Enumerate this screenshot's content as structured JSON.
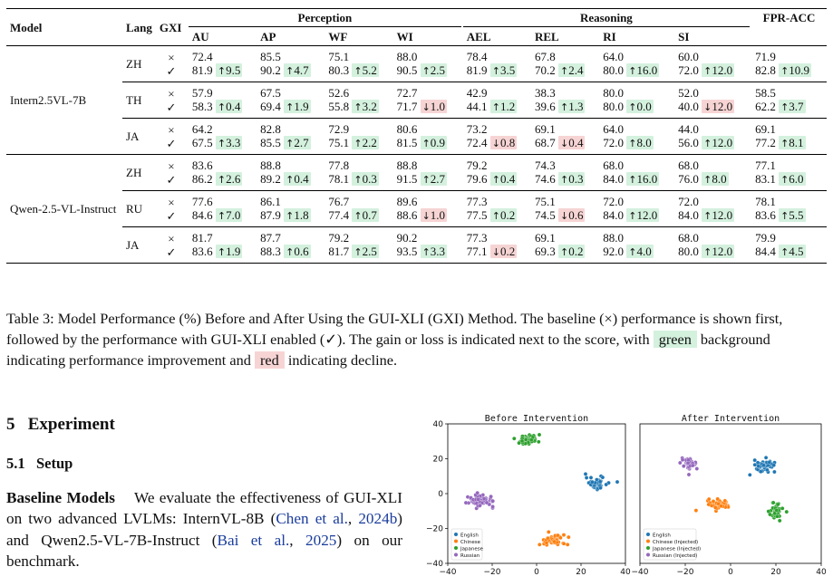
{
  "table": {
    "headers": {
      "model": "Model",
      "lang": "Lang",
      "gxi": "GXI",
      "groups": [
        {
          "label": "Perception",
          "cols": [
            "AU",
            "AP",
            "WF",
            "WI"
          ]
        },
        {
          "label": "Reasoning",
          "cols": [
            "AEL",
            "REL",
            "RI",
            "SI"
          ]
        }
      ],
      "fpr": "FPR-ACC"
    },
    "baseline_mark": "×",
    "gxi_mark": "✓",
    "rows": [
      {
        "model": "Intern2.5VL-7B",
        "lang": "ZH",
        "base": [
          "72.4",
          "85.5",
          "75.1",
          "88.0",
          "78.4",
          "67.8",
          "64.0",
          "60.0",
          "71.9"
        ],
        "gxi": [
          "81.9",
          "90.2",
          "80.3",
          "90.5",
          "81.9",
          "70.2",
          "80.0",
          "72.0",
          "82.8"
        ],
        "delta": [
          "9.5",
          "4.7",
          "5.2",
          "2.5",
          "3.5",
          "2.4",
          "16.0",
          "12.0",
          "10.9"
        ],
        "dir": [
          "up",
          "up",
          "up",
          "up",
          "up",
          "up",
          "up",
          "up",
          "up"
        ]
      },
      {
        "model": "",
        "lang": "TH",
        "base": [
          "57.9",
          "67.5",
          "52.6",
          "72.7",
          "42.9",
          "38.3",
          "80.0",
          "52.0",
          "58.5"
        ],
        "gxi": [
          "58.3",
          "69.4",
          "55.8",
          "71.7",
          "44.1",
          "39.6",
          "80.0",
          "40.0",
          "62.2"
        ],
        "delta": [
          "0.4",
          "1.9",
          "3.2",
          "1.0",
          "1.2",
          "1.3",
          "0.0",
          "12.0",
          "3.7"
        ],
        "dir": [
          "up",
          "up",
          "up",
          "down",
          "up",
          "up",
          "up",
          "down",
          "up"
        ]
      },
      {
        "model": "",
        "lang": "JA",
        "base": [
          "64.2",
          "82.8",
          "72.9",
          "80.6",
          "73.2",
          "69.1",
          "64.0",
          "44.0",
          "69.1"
        ],
        "gxi": [
          "67.5",
          "85.5",
          "75.1",
          "81.5",
          "72.4",
          "68.7",
          "72.0",
          "56.0",
          "77.2"
        ],
        "delta": [
          "3.3",
          "2.7",
          "2.2",
          "0.9",
          "0.8",
          "0.4",
          "8.0",
          "12.0",
          "8.1"
        ],
        "dir": [
          "up",
          "up",
          "up",
          "up",
          "down",
          "down",
          "up",
          "up",
          "up"
        ]
      },
      {
        "model": "Qwen-2.5-VL-Instruct",
        "lang": "ZH",
        "base": [
          "83.6",
          "88.8",
          "77.8",
          "88.8",
          "79.2",
          "74.3",
          "68.0",
          "68.0",
          "77.1"
        ],
        "gxi": [
          "86.2",
          "89.2",
          "78.1",
          "91.5",
          "79.6",
          "74.6",
          "84.0",
          "76.0",
          "83.1"
        ],
        "delta": [
          "2.6",
          "0.4",
          "0.3",
          "2.7",
          "0.4",
          "0.3",
          "16.0",
          "8.0",
          "6.0"
        ],
        "dir": [
          "up",
          "up",
          "up",
          "up",
          "up",
          "up",
          "up",
          "up",
          "up"
        ]
      },
      {
        "model": "",
        "lang": "RU",
        "base": [
          "77.6",
          "86.1",
          "76.7",
          "89.6",
          "77.3",
          "75.1",
          "72.0",
          "72.0",
          "78.1"
        ],
        "gxi": [
          "84.6",
          "87.9",
          "77.4",
          "88.6",
          "77.5",
          "74.5",
          "84.0",
          "84.0",
          "83.6"
        ],
        "delta": [
          "7.0",
          "1.8",
          "0.7",
          "1.0",
          "0.2",
          "0.6",
          "12.0",
          "12.0",
          "5.5"
        ],
        "dir": [
          "up",
          "up",
          "up",
          "down",
          "up",
          "down",
          "up",
          "up",
          "up"
        ]
      },
      {
        "model": "",
        "lang": "JA",
        "base": [
          "81.7",
          "87.7",
          "79.2",
          "90.2",
          "77.3",
          "69.1",
          "88.0",
          "68.0",
          "79.9"
        ],
        "gxi": [
          "83.6",
          "88.3",
          "81.7",
          "93.5",
          "77.1",
          "69.3",
          "92.0",
          "80.0",
          "84.4"
        ],
        "delta": [
          "1.9",
          "0.6",
          "2.5",
          "3.3",
          "0.2",
          "0.2",
          "4.0",
          "12.0",
          "4.5"
        ],
        "dir": [
          "up",
          "up",
          "up",
          "up",
          "down",
          "up",
          "up",
          "up",
          "up"
        ]
      }
    ]
  },
  "caption": {
    "part1": "Table 3: Model Performance (%) Before and After Using the GUI-XLI (GXI) Method. The baseline (×) performance is shown first, followed by the performance with GUI-XLI enabled (✓). The gain or loss is indicated next to the score, with ",
    "green": "green",
    "part2": " background indicating performance improvement and ",
    "red": "red",
    "part3": " indicating decline."
  },
  "section": {
    "num": "5",
    "title": "Experiment"
  },
  "subsection": {
    "num": "5.1",
    "title": "Setup"
  },
  "paragraph": {
    "lead": "Baseline Models",
    "t1": "We evaluate the effectiveness of GUI-XLI on two advanced LVLMs: InternVL-8B (",
    "c1a": "Chen et al.",
    "t2": ", ",
    "c1b": "2024b",
    "t3": ") and Qwen2.5-VL-7B-Instruct (",
    "c2a": "Bai et al.",
    "t4": ", ",
    "c2b": "2025",
    "t5": ") on our benchmark."
  },
  "chart_data": [
    {
      "type": "scatter",
      "title": "Before Intervention",
      "xlim": [
        -40,
        40
      ],
      "ylim": [
        -40,
        40
      ],
      "xticks": [
        "−40",
        "−20",
        "0",
        "20",
        "40"
      ],
      "yticks": [
        "40",
        "20",
        "0",
        "−20",
        "−40"
      ],
      "legend_position": "bottom-left",
      "series": [
        {
          "name": "English",
          "color": "#1f77b4",
          "center": [
            27,
            6
          ],
          "spread": [
            4,
            3
          ],
          "n": 50
        },
        {
          "name": "Chinese",
          "color": "#ff7f0e",
          "center": [
            7,
            -27
          ],
          "spread": [
            5,
            2.5
          ],
          "n": 55
        },
        {
          "name": "Japanese",
          "color": "#2ca02c",
          "center": [
            -4,
            31
          ],
          "spread": [
            4.5,
            2.5
          ],
          "n": 50
        },
        {
          "name": "Russian",
          "color": "#9467bd",
          "center": [
            -25,
            -4
          ],
          "spread": [
            5,
            3
          ],
          "n": 55
        }
      ]
    },
    {
      "type": "scatter",
      "title": "After Intervention",
      "xlim": [
        -40,
        40
      ],
      "ylim": [
        -40,
        40
      ],
      "xticks": [
        "−40",
        "−20",
        "0",
        "20",
        "40"
      ],
      "legend_position": "bottom-left",
      "series": [
        {
          "name": "English",
          "color": "#1f77b4",
          "center": [
            15,
            16
          ],
          "spread": [
            4,
            2.5
          ],
          "n": 50
        },
        {
          "name": "Chinese (Injected)",
          "color": "#ff7f0e",
          "center": [
            -5,
            -6
          ],
          "spread": [
            4,
            2.5
          ],
          "n": 45
        },
        {
          "name": "Japanese (Injected)",
          "color": "#2ca02c",
          "center": [
            20,
            -10
          ],
          "spread": [
            2.5,
            4
          ],
          "n": 40
        },
        {
          "name": "Russian (Injected)",
          "color": "#9467bd",
          "center": [
            -18,
            17
          ],
          "spread": [
            3,
            2.5
          ],
          "n": 45
        }
      ]
    }
  ]
}
